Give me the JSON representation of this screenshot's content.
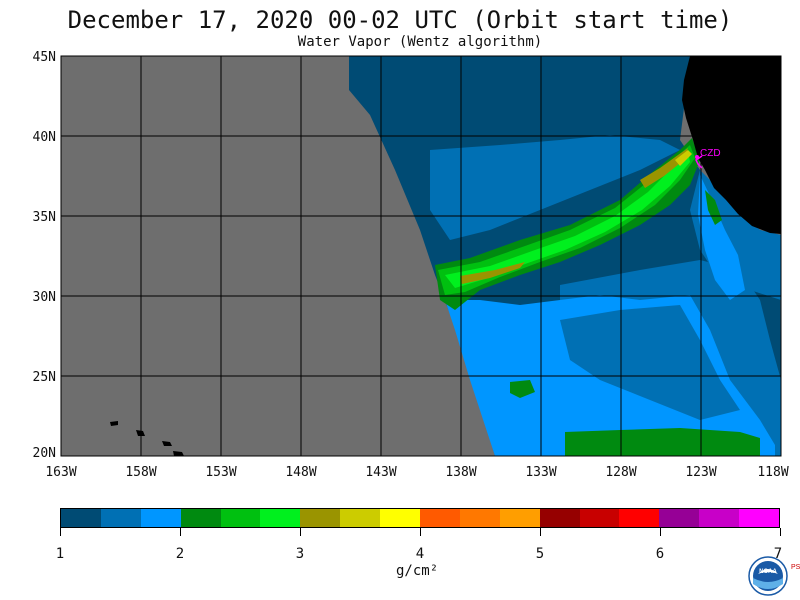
{
  "title": "December 17, 2020  00-02 UTC  (Orbit start time)",
  "subtitle": "Water Vapor (Wentz algorithm)",
  "map": {
    "lat_labels": [
      "45N",
      "40N",
      "35N",
      "30N",
      "25N",
      "20N"
    ],
    "lon_labels": [
      "163W",
      "158W",
      "153W",
      "148W",
      "143W",
      "138W",
      "133W",
      "128W",
      "123W",
      "118W"
    ],
    "station_label": "CZD",
    "colors": {
      "no_data": "#6e6e6e",
      "land": "#000000",
      "station": "#ff00ff"
    }
  },
  "colorbar": {
    "colors": [
      "#004b74",
      "#0070b4",
      "#0096ff",
      "#008a10",
      "#00c010",
      "#00f01e",
      "#9a9400",
      "#cccc00",
      "#ffff00",
      "#ff5a00",
      "#ff7800",
      "#ff9e00",
      "#960000",
      "#c80000",
      "#ff0000",
      "#960096",
      "#c800c8",
      "#ff00ff"
    ],
    "tick_labels": [
      "1",
      "2",
      "3",
      "4",
      "5",
      "6",
      "7"
    ],
    "units": "g/cm²"
  },
  "logo": {
    "text": "NOAA",
    "side_text": "PSL",
    "icon": "noaa-logo-icon"
  }
}
